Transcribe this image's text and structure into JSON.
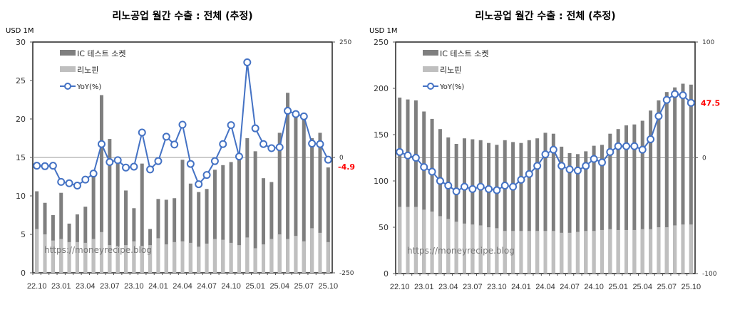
{
  "chart_data": [
    {
      "type": "bar",
      "stacked": true,
      "title": "리노공업 월간 수출 : 전체 (추정)",
      "ylabel": "USD 1M",
      "ylim": [
        0,
        30
      ],
      "yticks": [
        0,
        5,
        10,
        15,
        20,
        25,
        30
      ],
      "y2lim": [
        -250,
        250
      ],
      "y2ticks": [
        -250,
        0,
        250
      ],
      "x_tick_labels": [
        "22.10",
        "23.01",
        "23.04",
        "23.07",
        "23.10",
        "24.01",
        "24.04",
        "24.07",
        "24.10",
        "25.01",
        "25.04",
        "25.07",
        "25.10"
      ],
      "categories": [
        "22.10",
        "22.11",
        "22.12",
        "23.01",
        "23.02",
        "23.03",
        "23.04",
        "23.05",
        "23.06",
        "23.07",
        "23.08",
        "23.09",
        "23.10",
        "23.11",
        "23.12",
        "24.01",
        "24.02",
        "24.03",
        "24.04",
        "24.05",
        "24.06",
        "24.07",
        "24.08",
        "24.09",
        "24.10",
        "24.11",
        "24.12",
        "25.01",
        "25.02",
        "25.03",
        "25.04",
        "25.05",
        "25.06",
        "25.07",
        "25.08",
        "25.09",
        "25.10"
      ],
      "series": [
        {
          "name": "리노핀",
          "kind": "bar",
          "color": "#bfbfbf",
          "values": [
            5.7,
            5.0,
            4.2,
            4.4,
            4.0,
            4.0,
            3.9,
            4.4,
            5.3,
            3.6,
            3.5,
            3.6,
            4.1,
            3.5,
            3.6,
            4.5,
            3.7,
            4.0,
            4.1,
            3.9,
            3.4,
            3.8,
            4.4,
            4.3,
            3.9,
            3.6,
            4.6,
            3.2,
            3.7,
            4.4,
            5.0,
            4.4,
            4.8,
            4.1,
            5.8,
            5.2,
            4.0
          ]
        },
        {
          "name": "IC 테스트 소켓",
          "kind": "bar",
          "color": "#7f7f7f",
          "total_values": true,
          "values": [
            10.6,
            9.1,
            7.5,
            10.4,
            6.4,
            7.6,
            8.6,
            12.5,
            23.1,
            17.4,
            14.3,
            10.7,
            8.4,
            14.2,
            5.7,
            9.6,
            9.5,
            9.7,
            14.7,
            11.6,
            10.5,
            10.9,
            13.4,
            14.0,
            14.4,
            14.9,
            17.5,
            15.8,
            12.3,
            11.8,
            18.2,
            23.4,
            20.5,
            20.0,
            17.5,
            18.2,
            13.7
          ]
        },
        {
          "name": "YoY(%)",
          "kind": "line",
          "axis": "right",
          "color": "#4472c4",
          "values": [
            -18,
            -19,
            -18,
            -53,
            -56,
            -61,
            -48,
            -35,
            29,
            -10,
            -6,
            -22,
            -20,
            54,
            -26,
            -8,
            45,
            28,
            71,
            -14,
            -58,
            -38,
            -8,
            29,
            70,
            2,
            206,
            63,
            29,
            20,
            22,
            101,
            94,
            89,
            30,
            29,
            -4.9
          ]
        }
      ],
      "last_label": "-4.9",
      "watermark": "https://moneyrecipe.blog",
      "legend": "top-left"
    },
    {
      "type": "bar",
      "stacked": true,
      "title": "리노공업 월간 수출 : 전체 (추정)",
      "ylabel": "USD 1M",
      "ylim": [
        0,
        250
      ],
      "yticks": [
        0,
        50,
        100,
        150,
        200,
        250
      ],
      "y2lim": [
        -100,
        100
      ],
      "y2ticks": [
        -100,
        0,
        100
      ],
      "x_tick_labels": [
        "22.10",
        "23.01",
        "23.04",
        "23.07",
        "23.10",
        "24.01",
        "24.04",
        "24.07",
        "24.10",
        "25.01",
        "25.04",
        "25.07",
        "25.10"
      ],
      "categories": [
        "22.10",
        "22.11",
        "22.12",
        "23.01",
        "23.02",
        "23.03",
        "23.04",
        "23.05",
        "23.06",
        "23.07",
        "23.08",
        "23.09",
        "23.10",
        "23.11",
        "23.12",
        "24.01",
        "24.02",
        "24.03",
        "24.04",
        "24.05",
        "24.06",
        "24.07",
        "24.08",
        "24.09",
        "24.10",
        "24.11",
        "24.12",
        "25.01",
        "25.02",
        "25.03",
        "25.04",
        "25.05",
        "25.06",
        "25.07",
        "25.08",
        "25.09",
        "25.10"
      ],
      "series": [
        {
          "name": "리노핀",
          "kind": "bar",
          "color": "#bfbfbf",
          "values": [
            72,
            72,
            72,
            69,
            67,
            62,
            59,
            56,
            54,
            53,
            52,
            50,
            49,
            46,
            46,
            46,
            46,
            46,
            46,
            46,
            44,
            44,
            45,
            46,
            46,
            47,
            48,
            47,
            47,
            47,
            48,
            48,
            50,
            50,
            52,
            53,
            53
          ]
        },
        {
          "name": "IC 테스트 소켓",
          "kind": "bar",
          "color": "#7f7f7f",
          "total_values": true,
          "values": [
            190,
            188,
            187,
            175,
            167,
            156,
            147,
            140,
            146,
            145,
            144,
            141,
            139,
            144,
            142,
            141,
            144,
            146,
            152,
            151,
            137,
            130,
            129,
            132,
            138,
            139,
            151,
            156,
            160,
            161,
            165,
            176,
            187,
            196,
            201,
            205,
            204
          ]
        },
        {
          "name": "YoY(%)",
          "kind": "line",
          "axis": "right",
          "color": "#4472c4",
          "values": [
            5,
            2,
            0,
            -8,
            -12,
            -20,
            -24,
            -29,
            -25,
            -27,
            -25,
            -27,
            -28,
            -24,
            -25,
            -19,
            -14,
            -7,
            3,
            7,
            -7,
            -10,
            -11,
            -7,
            -1,
            -4,
            5,
            10,
            10,
            10,
            7,
            16,
            36,
            50,
            55,
            54,
            47.5
          ]
        }
      ],
      "last_label": "47.5",
      "watermark": "https://moneyrecipe.blog",
      "legend": "top-left"
    }
  ],
  "colors": {
    "accent_label": "#ff0000"
  }
}
